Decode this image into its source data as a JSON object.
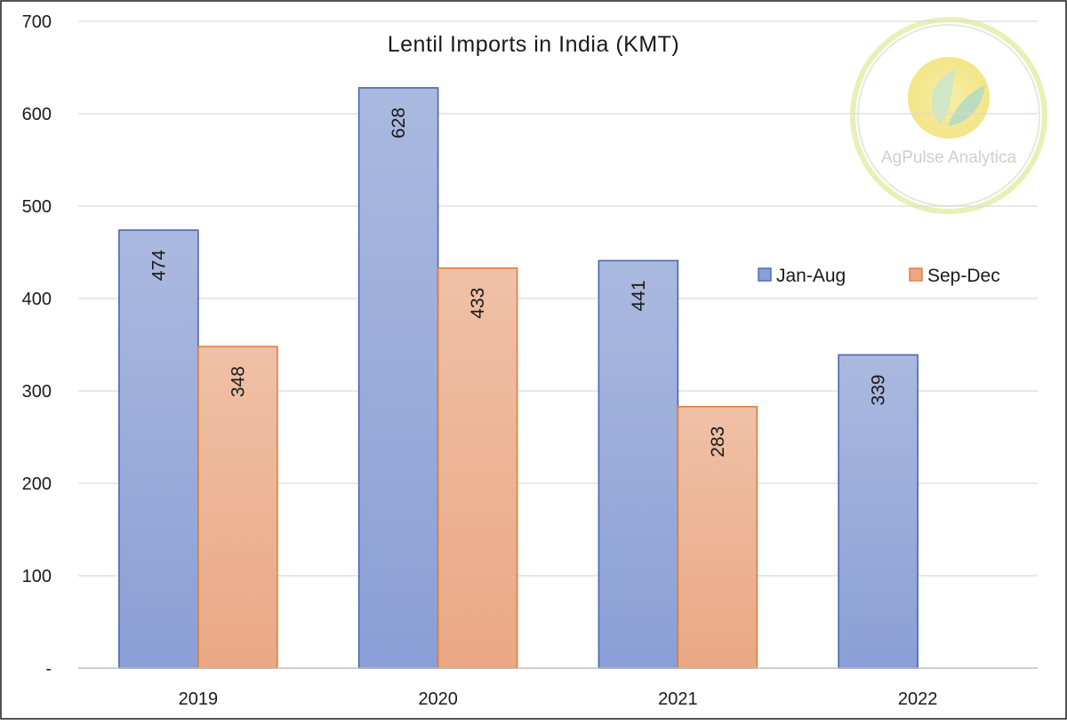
{
  "chart_data": {
    "type": "bar",
    "title": "Lentil Imports in India (KMT)",
    "categories": [
      "2019",
      "2020",
      "2021",
      "2022"
    ],
    "series": [
      {
        "name": "Jan-Aug",
        "values": [
          474,
          628,
          441,
          339
        ],
        "color": "#8fa3d8"
      },
      {
        "name": "Sep-Dec",
        "values": [
          348,
          433,
          283,
          null
        ],
        "color": "#ecaa88"
      }
    ],
    "y_ticks": [
      {
        "value": 0,
        "label": "-"
      },
      {
        "value": 100,
        "label": "100"
      },
      {
        "value": 200,
        "label": "200"
      },
      {
        "value": 300,
        "label": "300"
      },
      {
        "value": 400,
        "label": "400"
      },
      {
        "value": 500,
        "label": "500"
      },
      {
        "value": 600,
        "label": "600"
      },
      {
        "value": 700,
        "label": "700"
      }
    ],
    "ylim": [
      0,
      700
    ],
    "grid": true,
    "legend_position": "right",
    "xlabel": "",
    "ylabel": ""
  },
  "watermark": {
    "text": "AgPulse Analytica",
    "icon": "leaf-logo-icon"
  },
  "colors": {
    "jan_aug_fill_top": "#aab9df",
    "jan_aug_fill_bottom": "#8a9fd6",
    "jan_aug_border": "#4a66b4",
    "sep_dec_fill_top": "#f0c0a6",
    "sep_dec_fill_bottom": "#eaa884",
    "sep_dec_border": "#e07c3a"
  }
}
